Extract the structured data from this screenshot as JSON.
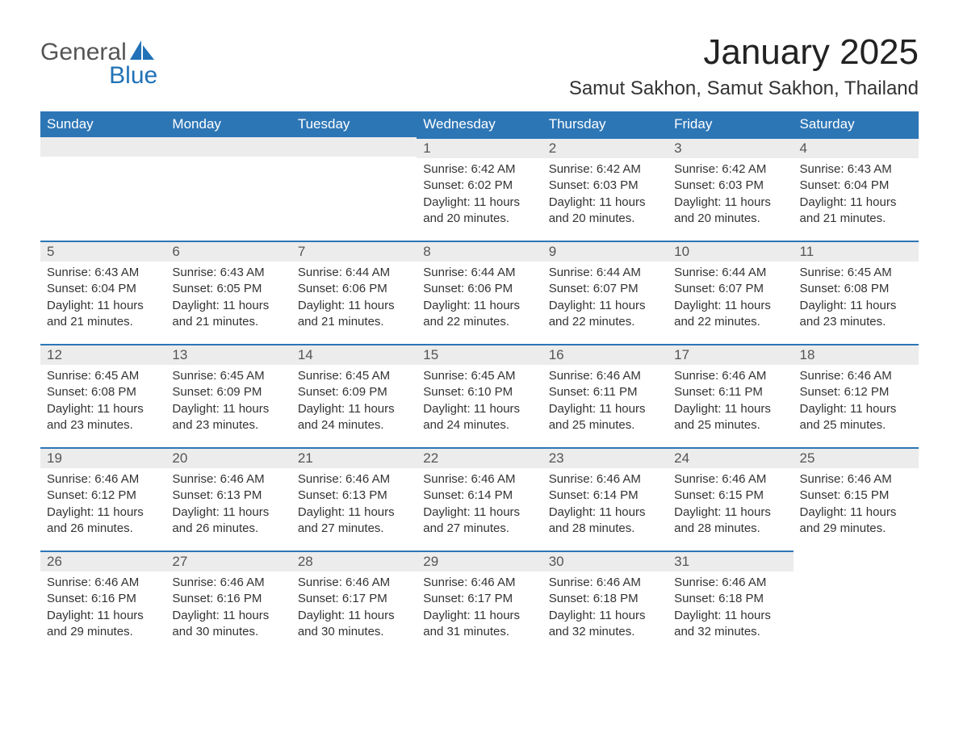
{
  "brand": {
    "word1": "General",
    "word2": "Blue",
    "text_color_1": "#555555",
    "text_color_2": "#2172b7",
    "sail_color": "#2172b7"
  },
  "header": {
    "month_title": "January 2025",
    "location": "Samut Sakhon, Samut Sakhon, Thailand"
  },
  "colors": {
    "header_row_bg": "#2d76b6",
    "header_row_text": "#ffffff",
    "day_num_bg": "#ececec",
    "row_divider": "#2d76b6",
    "body_text": "#333333",
    "page_bg": "#ffffff"
  },
  "typography": {
    "month_title_fontsize": 44,
    "location_fontsize": 24,
    "weekday_fontsize": 17,
    "daynum_fontsize": 17,
    "body_fontsize": 15
  },
  "weekdays": [
    "Sunday",
    "Monday",
    "Tuesday",
    "Wednesday",
    "Thursday",
    "Friday",
    "Saturday"
  ],
  "labels": {
    "sunrise": "Sunrise:",
    "sunset": "Sunset:",
    "daylight": "Daylight:"
  },
  "weeks": [
    [
      null,
      null,
      null,
      {
        "n": "1",
        "sunrise": "6:42 AM",
        "sunset": "6:02 PM",
        "daylight": "11 hours and 20 minutes."
      },
      {
        "n": "2",
        "sunrise": "6:42 AM",
        "sunset": "6:03 PM",
        "daylight": "11 hours and 20 minutes."
      },
      {
        "n": "3",
        "sunrise": "6:42 AM",
        "sunset": "6:03 PM",
        "daylight": "11 hours and 20 minutes."
      },
      {
        "n": "4",
        "sunrise": "6:43 AM",
        "sunset": "6:04 PM",
        "daylight": "11 hours and 21 minutes."
      }
    ],
    [
      {
        "n": "5",
        "sunrise": "6:43 AM",
        "sunset": "6:04 PM",
        "daylight": "11 hours and 21 minutes."
      },
      {
        "n": "6",
        "sunrise": "6:43 AM",
        "sunset": "6:05 PM",
        "daylight": "11 hours and 21 minutes."
      },
      {
        "n": "7",
        "sunrise": "6:44 AM",
        "sunset": "6:06 PM",
        "daylight": "11 hours and 21 minutes."
      },
      {
        "n": "8",
        "sunrise": "6:44 AM",
        "sunset": "6:06 PM",
        "daylight": "11 hours and 22 minutes."
      },
      {
        "n": "9",
        "sunrise": "6:44 AM",
        "sunset": "6:07 PM",
        "daylight": "11 hours and 22 minutes."
      },
      {
        "n": "10",
        "sunrise": "6:44 AM",
        "sunset": "6:07 PM",
        "daylight": "11 hours and 22 minutes."
      },
      {
        "n": "11",
        "sunrise": "6:45 AM",
        "sunset": "6:08 PM",
        "daylight": "11 hours and 23 minutes."
      }
    ],
    [
      {
        "n": "12",
        "sunrise": "6:45 AM",
        "sunset": "6:08 PM",
        "daylight": "11 hours and 23 minutes."
      },
      {
        "n": "13",
        "sunrise": "6:45 AM",
        "sunset": "6:09 PM",
        "daylight": "11 hours and 23 minutes."
      },
      {
        "n": "14",
        "sunrise": "6:45 AM",
        "sunset": "6:09 PM",
        "daylight": "11 hours and 24 minutes."
      },
      {
        "n": "15",
        "sunrise": "6:45 AM",
        "sunset": "6:10 PM",
        "daylight": "11 hours and 24 minutes."
      },
      {
        "n": "16",
        "sunrise": "6:46 AM",
        "sunset": "6:11 PM",
        "daylight": "11 hours and 25 minutes."
      },
      {
        "n": "17",
        "sunrise": "6:46 AM",
        "sunset": "6:11 PM",
        "daylight": "11 hours and 25 minutes."
      },
      {
        "n": "18",
        "sunrise": "6:46 AM",
        "sunset": "6:12 PM",
        "daylight": "11 hours and 25 minutes."
      }
    ],
    [
      {
        "n": "19",
        "sunrise": "6:46 AM",
        "sunset": "6:12 PM",
        "daylight": "11 hours and 26 minutes."
      },
      {
        "n": "20",
        "sunrise": "6:46 AM",
        "sunset": "6:13 PM",
        "daylight": "11 hours and 26 minutes."
      },
      {
        "n": "21",
        "sunrise": "6:46 AM",
        "sunset": "6:13 PM",
        "daylight": "11 hours and 27 minutes."
      },
      {
        "n": "22",
        "sunrise": "6:46 AM",
        "sunset": "6:14 PM",
        "daylight": "11 hours and 27 minutes."
      },
      {
        "n": "23",
        "sunrise": "6:46 AM",
        "sunset": "6:14 PM",
        "daylight": "11 hours and 28 minutes."
      },
      {
        "n": "24",
        "sunrise": "6:46 AM",
        "sunset": "6:15 PM",
        "daylight": "11 hours and 28 minutes."
      },
      {
        "n": "25",
        "sunrise": "6:46 AM",
        "sunset": "6:15 PM",
        "daylight": "11 hours and 29 minutes."
      }
    ],
    [
      {
        "n": "26",
        "sunrise": "6:46 AM",
        "sunset": "6:16 PM",
        "daylight": "11 hours and 29 minutes."
      },
      {
        "n": "27",
        "sunrise": "6:46 AM",
        "sunset": "6:16 PM",
        "daylight": "11 hours and 30 minutes."
      },
      {
        "n": "28",
        "sunrise": "6:46 AM",
        "sunset": "6:17 PM",
        "daylight": "11 hours and 30 minutes."
      },
      {
        "n": "29",
        "sunrise": "6:46 AM",
        "sunset": "6:17 PM",
        "daylight": "11 hours and 31 minutes."
      },
      {
        "n": "30",
        "sunrise": "6:46 AM",
        "sunset": "6:18 PM",
        "daylight": "11 hours and 32 minutes."
      },
      {
        "n": "31",
        "sunrise": "6:46 AM",
        "sunset": "6:18 PM",
        "daylight": "11 hours and 32 minutes."
      },
      null
    ]
  ]
}
